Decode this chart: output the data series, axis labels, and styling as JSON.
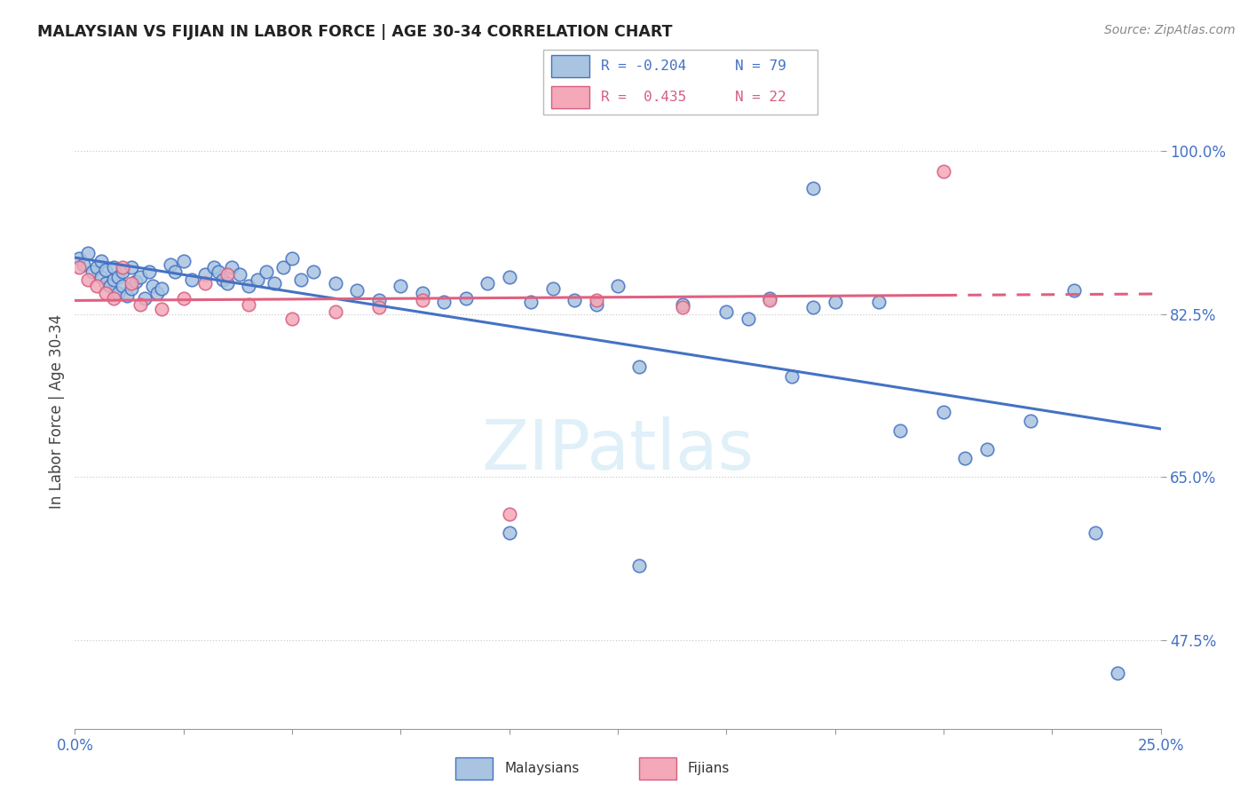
{
  "title": "MALAYSIAN VS FIJIAN IN LABOR FORCE | AGE 30-34 CORRELATION CHART",
  "source": "Source: ZipAtlas.com",
  "ylabel": "In Labor Force | Age 30-34",
  "xlim": [
    0.0,
    0.25
  ],
  "ylim": [
    0.38,
    1.06
  ],
  "ytick_positions": [
    0.475,
    0.65,
    0.825,
    1.0
  ],
  "ytick_labels": [
    "47.5%",
    "65.0%",
    "82.5%",
    "100.0%"
  ],
  "xtick_positions": [
    0.0,
    0.025,
    0.05,
    0.075,
    0.1,
    0.125,
    0.15,
    0.175,
    0.2,
    0.225,
    0.25
  ],
  "xtick_labels": [
    "0.0%",
    "",
    "",
    "",
    "",
    "",
    "",
    "",
    "",
    "",
    "25.0%"
  ],
  "grid_yticks": [
    0.475,
    0.65,
    0.825,
    1.0
  ],
  "malaysian_face": "#a8c4e0",
  "malaysian_edge": "#4472c4",
  "fijian_face": "#f4a8b8",
  "fijian_edge": "#d46080",
  "malaysian_line": "#4472c4",
  "fijian_line": "#e06080",
  "legend_R_blue": "-0.204",
  "legend_N_blue": "79",
  "legend_R_pink": "0.435",
  "legend_N_pink": "22",
  "watermark": "ZIPatlas",
  "bg": "#ffffff",
  "malaysian_x": [
    0.001,
    0.002,
    0.003,
    0.004,
    0.005,
    0.006,
    0.006,
    0.007,
    0.007,
    0.008,
    0.009,
    0.009,
    0.01,
    0.01,
    0.011,
    0.011,
    0.012,
    0.013,
    0.013,
    0.014,
    0.015,
    0.016,
    0.017,
    0.018,
    0.019,
    0.02,
    0.022,
    0.023,
    0.025,
    0.027,
    0.03,
    0.032,
    0.033,
    0.034,
    0.035,
    0.036,
    0.038,
    0.04,
    0.042,
    0.044,
    0.046,
    0.048,
    0.05,
    0.052,
    0.055,
    0.06,
    0.065,
    0.07,
    0.075,
    0.08,
    0.085,
    0.09,
    0.095,
    0.1,
    0.105,
    0.11,
    0.115,
    0.12,
    0.125,
    0.13,
    0.14,
    0.15,
    0.155,
    0.16,
    0.165,
    0.17,
    0.175,
    0.185,
    0.19,
    0.2,
    0.205,
    0.21,
    0.22,
    0.23,
    0.235,
    0.24,
    0.17,
    0.1,
    0.13
  ],
  "malaysian_y": [
    0.885,
    0.878,
    0.89,
    0.87,
    0.875,
    0.865,
    0.882,
    0.858,
    0.872,
    0.855,
    0.862,
    0.875,
    0.848,
    0.865,
    0.87,
    0.855,
    0.845,
    0.852,
    0.875,
    0.86,
    0.865,
    0.842,
    0.87,
    0.855,
    0.848,
    0.852,
    0.878,
    0.87,
    0.882,
    0.862,
    0.868,
    0.875,
    0.87,
    0.862,
    0.858,
    0.875,
    0.868,
    0.855,
    0.862,
    0.87,
    0.858,
    0.875,
    0.885,
    0.862,
    0.87,
    0.858,
    0.85,
    0.84,
    0.855,
    0.848,
    0.838,
    0.842,
    0.858,
    0.865,
    0.838,
    0.852,
    0.84,
    0.835,
    0.855,
    0.768,
    0.835,
    0.828,
    0.82,
    0.842,
    0.758,
    0.832,
    0.838,
    0.838,
    0.7,
    0.72,
    0.67,
    0.68,
    0.71,
    0.85,
    0.59,
    0.44,
    0.96,
    0.59,
    0.555
  ],
  "fijian_x": [
    0.001,
    0.003,
    0.005,
    0.007,
    0.009,
    0.011,
    0.013,
    0.015,
    0.02,
    0.025,
    0.03,
    0.035,
    0.04,
    0.05,
    0.06,
    0.07,
    0.08,
    0.1,
    0.12,
    0.14,
    0.16,
    0.2
  ],
  "fijian_y": [
    0.875,
    0.862,
    0.855,
    0.848,
    0.842,
    0.875,
    0.858,
    0.835,
    0.83,
    0.842,
    0.858,
    0.868,
    0.835,
    0.82,
    0.828,
    0.832,
    0.84,
    0.61,
    0.84,
    0.832,
    0.84,
    0.978
  ]
}
